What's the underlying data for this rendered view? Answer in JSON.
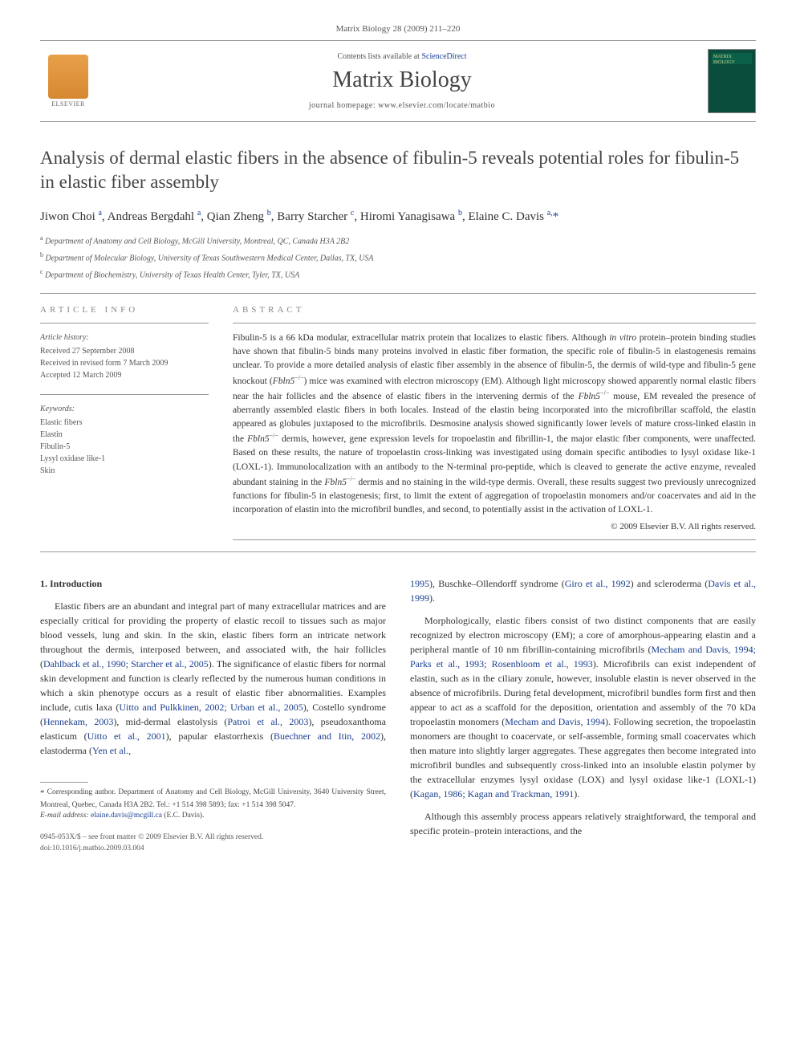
{
  "header": {
    "journal_ref": "Matrix Biology 28 (2009) 211–220",
    "contents_prefix": "Contents lists available at ",
    "contents_link": "ScienceDirect",
    "journal_title": "Matrix Biology",
    "homepage_prefix": "journal homepage: ",
    "homepage_url": "www.elsevier.com/locate/matbio",
    "elsevier_label": "ELSEVIER",
    "cover_text": "MATRIX BIOLOGY"
  },
  "article": {
    "title": "Analysis of dermal elastic fibers in the absence of fibulin-5 reveals potential roles for fibulin-5 in elastic fiber assembly",
    "authors_html": "Jiwon Choi <sup>a</sup>, Andreas Bergdahl <sup>a</sup>, Qian Zheng <sup>b</sup>, Barry Starcher <sup>c</sup>, Hiromi Yanagisawa <sup>b</sup>, Elaine C. Davis <sup>a,</sup><span class='star'>*</span>",
    "affiliations": [
      {
        "sup": "a",
        "text": "Department of Anatomy and Cell Biology, McGill University, Montreal, QC, Canada H3A 2B2"
      },
      {
        "sup": "b",
        "text": "Department of Molecular Biology, University of Texas Southwestern Medical Center, Dallas, TX, USA"
      },
      {
        "sup": "c",
        "text": "Department of Biochemistry, University of Texas Health Center, Tyler, TX, USA"
      }
    ]
  },
  "info": {
    "heading": "ARTICLE INFO",
    "history_label": "Article history:",
    "received": "Received 27 September 2008",
    "revised": "Received in revised form 7 March 2009",
    "accepted": "Accepted 12 March 2009",
    "keywords_label": "Keywords:",
    "keywords": [
      "Elastic fibers",
      "Elastin",
      "Fibulin-5",
      "Lysyl oxidase like-1",
      "Skin"
    ]
  },
  "abstract": {
    "heading": "ABSTRACT",
    "text_html": "Fibulin-5 is a 66 kDa modular, extracellular matrix protein that localizes to elastic fibers. Although <span class='ital'>in vitro</span> protein–protein binding studies have shown that fibulin-5 binds many proteins involved in elastic fiber formation, the specific role of fibulin-5 in elastogenesis remains unclear. To provide a more detailed analysis of elastic fiber assembly in the absence of fibulin-5, the dermis of wild-type and fibulin-5 gene knockout (<span class='ital'>Fbln5</span><sup>−/−</sup>) mice was examined with electron microscopy (EM). Although light microscopy showed apparently normal elastic fibers near the hair follicles and the absence of elastic fibers in the intervening dermis of the <span class='ital'>Fbln5</span><sup>−/−</sup> mouse, EM revealed the presence of aberrantly assembled elastic fibers in both locales. Instead of the elastin being incorporated into the microfibrillar scaffold, the elastin appeared as globules juxtaposed to the microfibrils. Desmosine analysis showed significantly lower levels of mature cross-linked elastin in the <span class='ital'>Fbln5</span><sup>−/−</sup> dermis, however, gene expression levels for tropoelastin and fibrillin-1, the major elastic fiber components, were unaffected. Based on these results, the nature of tropoelastin cross-linking was investigated using domain specific antibodies to lysyl oxidase like-1 (LOXL-1). Immunolocalization with an antibody to the N-terminal pro-peptide, which is cleaved to generate the active enzyme, revealed abundant staining in the <span class='ital'>Fbln5</span><sup>−/−</sup> dermis and no staining in the wild-type dermis. Overall, these results suggest two previously unrecognized functions for fibulin-5 in elastogenesis; first, to limit the extent of aggregation of tropoelastin monomers and/or coacervates and aid in the incorporation of elastin into the microfibril bundles, and second, to potentially assist in the activation of LOXL-1.",
    "copyright": "© 2009 Elsevier B.V. All rights reserved."
  },
  "body": {
    "section_heading": "1. Introduction",
    "left_paragraphs_html": [
      "Elastic fibers are an abundant and integral part of many extracellular matrices and are especially critical for providing the property of elastic recoil to tissues such as major blood vessels, lung and skin. In the skin, elastic fibers form an intricate network throughout the dermis, interposed between, and associated with, the hair follicles (<span class='ref'>Dahlback et al., 1990; Starcher et al., 2005</span>). The significance of elastic fibers for normal skin development and function is clearly reflected by the numerous human conditions in which a skin phenotype occurs as a result of elastic fiber abnormalities. Examples include, cutis laxa (<span class='ref'>Uitto and Pulkkinen, 2002; Urban et al., 2005</span>), Costello syndrome (<span class='ref'>Hennekam, 2003</span>), mid-dermal elastolysis (<span class='ref'>Patroi et al., 2003</span>), pseudoxanthoma elasticum (<span class='ref'>Uitto et al., 2001</span>), papular elastorrhexis (<span class='ref'>Buechner and Itin, 2002</span>), elastoderma (<span class='ref'>Yen et al.,</span>"
    ],
    "right_paragraphs_html": [
      "<span class='ref'>1995</span>), Buschke–Ollendorff syndrome (<span class='ref'>Giro et al., 1992</span>) and scleroderma (<span class='ref'>Davis et al., 1999</span>).",
      "Morphologically, elastic fibers consist of two distinct components that are easily recognized by electron microscopy (EM); a core of amorphous-appearing elastin and a peripheral mantle of 10 nm fibrillin-containing microfibrils (<span class='ref'>Mecham and Davis, 1994; Parks et al., 1993; Rosenbloom et al., 1993</span>). Microfibrils can exist independent of elastin, such as in the ciliary zonule, however, insoluble elastin is never observed in the absence of microfibrils. During fetal development, microfibril bundles form first and then appear to act as a scaffold for the deposition, orientation and assembly of the 70 kDa tropoelastin monomers (<span class='ref'>Mecham and Davis, 1994</span>). Following secretion, the tropoelastin monomers are thought to coacervate, or self-assemble, forming small coacervates which then mature into slightly larger aggregates. These aggregates then become integrated into microfibril bundles and subsequently cross-linked into an insoluble elastin polymer by the extracellular enzymes lysyl oxidase (LOX) and lysyl oxidase like-1 (LOXL-1) (<span class='ref'>Kagan, 1986; Kagan and Trackman, 1991</span>).",
      "Although this assembly process appears relatively straightforward, the temporal and specific protein–protein interactions, and the"
    ]
  },
  "footnotes": {
    "corr_html": "<span class='star'>*</span> Corresponding author. Department of Anatomy and Cell Biology, McGill University, 3640 University Street, Montreal, Quebec, Canada H3A 2B2. Tel.: +1 514 398 5893; fax: +1 514 398 5047.",
    "email_label": "E-mail address:",
    "email": "elaine.davis@mcgill.ca",
    "email_suffix": "(E.C. Davis)."
  },
  "footer": {
    "line1": "0945-053X/$ – see front matter © 2009 Elsevier B.V. All rights reserved.",
    "line2": "doi:10.1016/j.matbio.2009.03.004"
  },
  "colors": {
    "link": "#1a3f8f",
    "text": "#333333",
    "muted": "#555555",
    "rule": "#999999"
  }
}
